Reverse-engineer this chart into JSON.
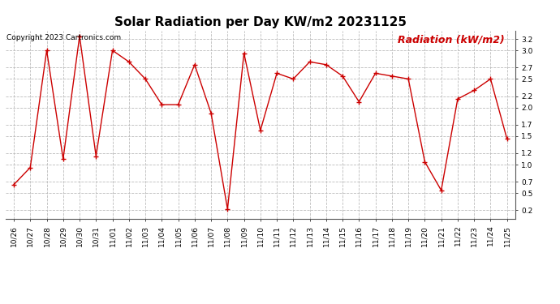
{
  "title": "Solar Radiation per Day KW/m2 20231125",
  "copyright_text": "Copyright 2023 Cartronics.com",
  "legend_label": "Radiation (kW/m2)",
  "dates": [
    "10/26",
    "10/27",
    "10/28",
    "10/29",
    "10/30",
    "10/31",
    "11/01",
    "11/02",
    "11/03",
    "11/04",
    "11/05",
    "11/06",
    "11/07",
    "11/08",
    "11/09",
    "11/10",
    "11/11",
    "11/12",
    "11/13",
    "11/14",
    "11/15",
    "11/16",
    "11/17",
    "11/18",
    "11/19",
    "11/20",
    "11/21",
    "11/22",
    "11/23",
    "11/24",
    "11/25"
  ],
  "values": [
    0.65,
    0.95,
    3.0,
    1.1,
    3.25,
    1.15,
    3.0,
    2.8,
    2.5,
    2.05,
    2.05,
    2.75,
    1.9,
    0.22,
    2.95,
    1.6,
    2.6,
    2.5,
    2.8,
    2.75,
    2.55,
    2.1,
    2.6,
    2.55,
    2.5,
    1.05,
    0.55,
    2.15,
    2.3,
    2.5,
    1.45
  ],
  "line_color": "#cc0000",
  "marker": "+",
  "marker_size": 5,
  "line_width": 1.0,
  "ylim": [
    0.05,
    3.35
  ],
  "yticks": [
    0.2,
    0.5,
    0.7,
    1.0,
    1.2,
    1.5,
    1.7,
    2.0,
    2.2,
    2.5,
    2.7,
    3.0,
    3.2
  ],
  "background_color": "#ffffff",
  "grid_color": "#bbbbbb",
  "title_fontsize": 11,
  "tick_fontsize": 6.5,
  "copyright_fontsize": 6.5,
  "legend_fontsize": 9
}
